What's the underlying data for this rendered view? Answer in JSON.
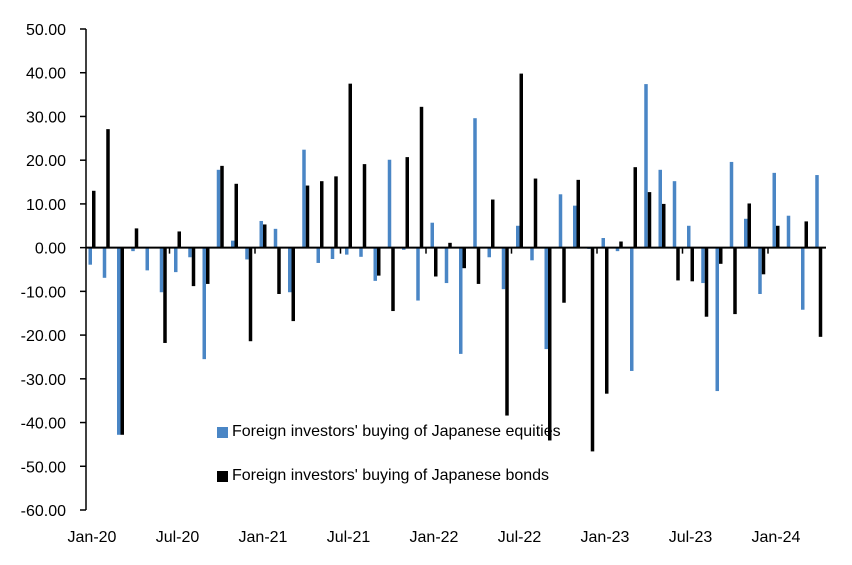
{
  "chart_data": {
    "type": "bar",
    "title": "",
    "xlabel": "",
    "ylabel": "",
    "ylim": [
      -60,
      50
    ],
    "yticks": [
      "50.00",
      "40.00",
      "30.00",
      "20.00",
      "10.00",
      "0.00",
      "-10.00",
      "-20.00",
      "-30.00",
      "-40.00",
      "-50.00",
      "-60.00"
    ],
    "xtick_labels": [
      "Jan-20",
      "Jul-20",
      "Jan-21",
      "Jul-21",
      "Jan-22",
      "Jul-22",
      "Jan-23",
      "Jul-23",
      "Jan-24"
    ],
    "grid": false,
    "legend_position": "bottom-center",
    "categories": [
      "Jan-20",
      "Feb-20",
      "Mar-20",
      "Apr-20",
      "May-20",
      "Jun-20",
      "Jul-20",
      "Aug-20",
      "Sep-20",
      "Oct-20",
      "Nov-20",
      "Dec-20",
      "Jan-21",
      "Feb-21",
      "Mar-21",
      "Apr-21",
      "May-21",
      "Jun-21",
      "Jul-21",
      "Aug-21",
      "Sep-21",
      "Oct-21",
      "Nov-21",
      "Dec-21",
      "Jan-22",
      "Feb-22",
      "Mar-22",
      "Apr-22",
      "May-22",
      "Jun-22",
      "Jul-22",
      "Aug-22",
      "Sep-22",
      "Oct-22",
      "Nov-22",
      "Dec-22",
      "Jan-23",
      "Feb-23",
      "Mar-23",
      "Apr-23",
      "May-23",
      "Jun-23",
      "Jul-23",
      "Aug-23",
      "Sep-23",
      "Oct-23",
      "Nov-23",
      "Dec-23",
      "Jan-24",
      "Feb-24",
      "Mar-24",
      "Apr-24"
    ],
    "series": [
      {
        "name": "Foreign investors' buying of Japanese equities",
        "color": "#4A86C5",
        "values": [
          -3.9,
          -6.9,
          -42.8,
          -0.8,
          -5.2,
          -10.2,
          -5.6,
          -2.2,
          -25.5,
          17.8,
          1.6,
          -2.7,
          6.1,
          4.3,
          -10.2,
          22.4,
          -3.5,
          -2.6,
          -1.6,
          -2.1,
          -7.6,
          20.1,
          -0.5,
          -12.1,
          5.7,
          -8.1,
          -24.3,
          29.6,
          -2.2,
          -9.5,
          5.0,
          -2.9,
          -23.2,
          12.2,
          9.6,
          -0.3,
          2.2,
          -0.8,
          -28.2,
          37.4,
          17.8,
          15.2,
          5.0,
          -8.1,
          -32.8,
          19.6,
          6.6,
          -10.6,
          17.1,
          7.3,
          -14.2,
          16.6
        ]
      },
      {
        "name": "Foreign investors' buying of Japanese bonds",
        "color": "#000000",
        "values": [
          13.0,
          27.1,
          -42.8,
          4.4,
          0,
          -21.8,
          3.7,
          -8.8,
          -8.3,
          18.7,
          14.6,
          -21.4,
          5.3,
          -10.6,
          -16.8,
          14.2,
          15.2,
          16.3,
          37.5,
          19.1,
          -6.4,
          -14.5,
          20.7,
          32.2,
          -6.6,
          1.1,
          -4.7,
          -8.3,
          11.0,
          -38.4,
          39.8,
          15.8,
          -44.1,
          -12.6,
          15.5,
          -46.6,
          -33.4,
          1.4,
          18.4,
          12.7,
          10.0,
          -7.5,
          -7.7,
          -15.8,
          -3.7,
          -15.2,
          10.1,
          -6.1,
          5.0,
          0,
          6.0,
          -20.4
        ]
      }
    ]
  }
}
